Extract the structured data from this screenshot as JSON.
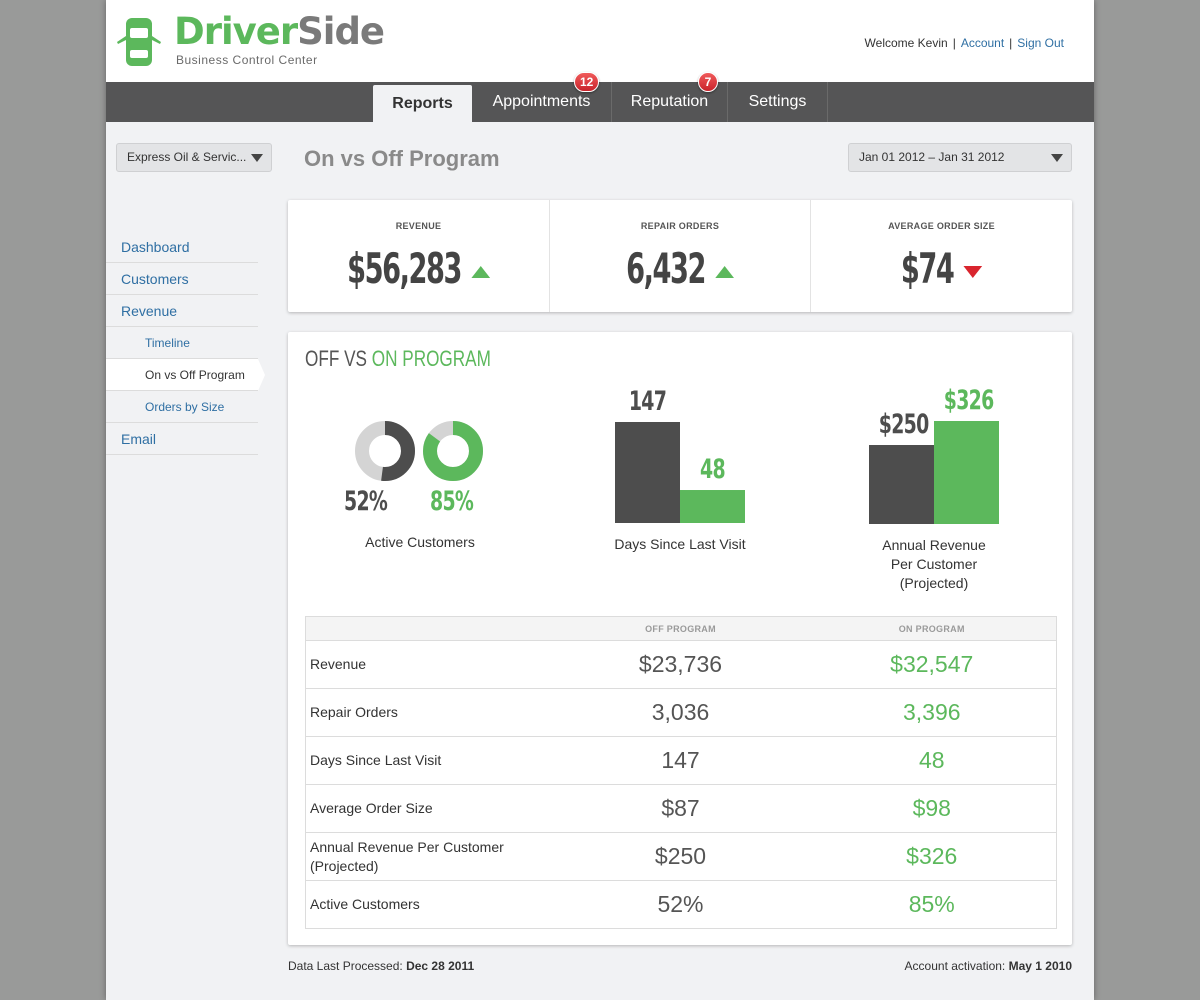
{
  "brand": {
    "name_part1": "Driver",
    "name_part2": "Side",
    "subtitle": "Business Control Center",
    "green": "#5cb85c",
    "gray": "#7a7a7a"
  },
  "user": {
    "welcome": "Welcome Kevin",
    "account_link": "Account",
    "signout_link": "Sign Out",
    "separator": "|"
  },
  "nav": {
    "tabs": [
      {
        "label": "Reports",
        "active": true
      },
      {
        "label": "Appointments",
        "badge": "12"
      },
      {
        "label": "Reputation",
        "badge": "7"
      },
      {
        "label": "Settings"
      }
    ]
  },
  "store_select": {
    "value": "Express Oil & Servic..."
  },
  "date_select": {
    "value": "Jan 01 2012 – Jan 31 2012"
  },
  "page_title": "On vs Off Program",
  "sidebar": {
    "items": [
      {
        "label": "Dashboard"
      },
      {
        "label": "Customers"
      },
      {
        "label": "Revenue"
      },
      {
        "label": "Timeline"
      },
      {
        "label": "On vs Off Program",
        "current": true
      },
      {
        "label": "Orders by Size"
      },
      {
        "label": "Email"
      }
    ]
  },
  "kpis": [
    {
      "label": "REVENUE",
      "value": "$56,283",
      "trend": "up"
    },
    {
      "label": "REPAIR ORDERS",
      "value": "6,432",
      "trend": "up"
    },
    {
      "label": "AVERAGE ORDER SIZE",
      "value": "$74",
      "trend": "down"
    }
  ],
  "program": {
    "title_off": "OFF VS ",
    "title_on": "ON PROGRAM"
  },
  "chart_data": [
    {
      "type": "pie",
      "caption": "Active Customers",
      "series": [
        {
          "name": "",
          "value": 52,
          "label": "52%",
          "color": "#4d4d4d"
        },
        {
          "name": "",
          "value": 85,
          "label": "85%",
          "color": "#5cb85c"
        }
      ]
    },
    {
      "type": "bar",
      "caption": "Days Since Last Visit",
      "values": [
        147,
        48
      ],
      "labels": [
        "147",
        "48"
      ],
      "colors": [
        "#4d4d4d",
        "#5cb85c"
      ]
    },
    {
      "type": "bar",
      "caption_lines": [
        "Annual Revenue",
        "Per Customer",
        "(Projected)"
      ],
      "values": [
        250,
        326
      ],
      "labels": [
        "$250",
        "$326"
      ],
      "colors": [
        "#4d4d4d",
        "#5cb85c"
      ]
    }
  ],
  "table": {
    "headers": [
      "",
      "OFF PROGRAM",
      "ON PROGRAM"
    ],
    "rows": [
      {
        "metric": "Revenue",
        "off": "$23,736",
        "on": "$32,547"
      },
      {
        "metric": "Repair Orders",
        "off": "3,036",
        "on": "3,396"
      },
      {
        "metric": "Days Since Last Visit",
        "off": "147",
        "on": "48"
      },
      {
        "metric": "Average Order Size",
        "off": "$87",
        "on": "$98"
      },
      {
        "metric": "Annual Revenue Per Customer (Projected)",
        "off": "$250",
        "on": "$326"
      },
      {
        "metric": "Active Customers",
        "off": "52%",
        "on": "85%"
      }
    ]
  },
  "footer": {
    "processed_label": "Data Last Processed: ",
    "processed_value": "Dec 28 2011",
    "activation_label": "Account activation: ",
    "activation_value": "May 1 2010"
  }
}
